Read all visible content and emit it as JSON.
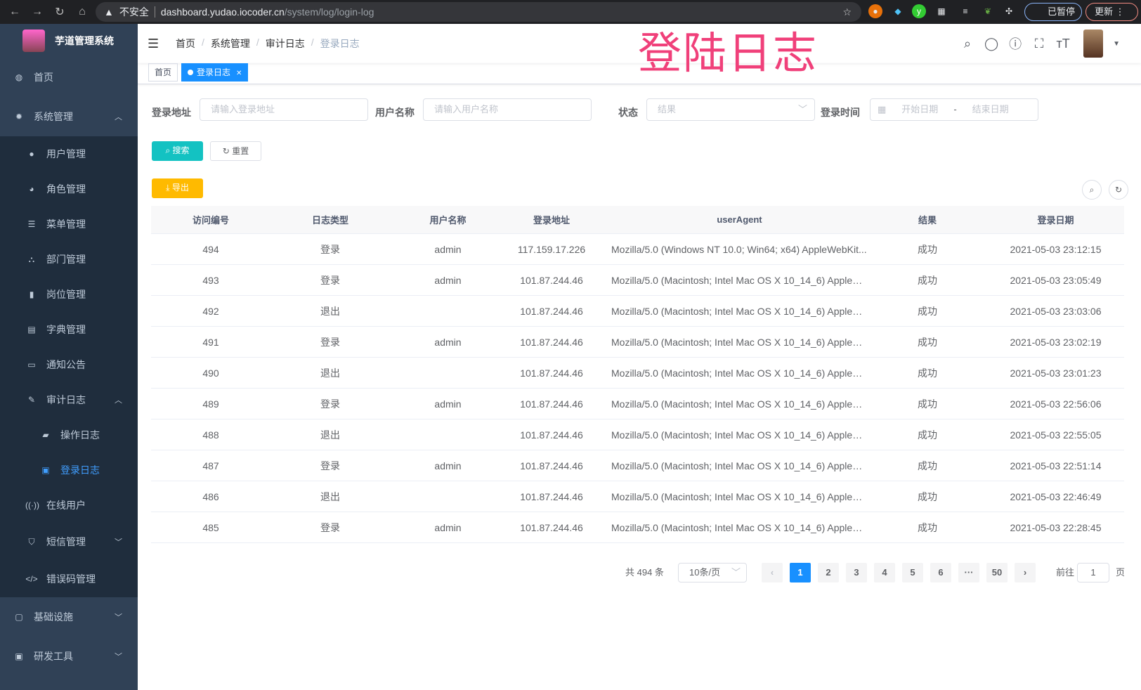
{
  "browser": {
    "not_secure": "不安全",
    "url_host": "dashboard.yudao.iocoder.cn",
    "url_path": "/system/log/login-log",
    "paused": "已暂停",
    "update": "更新"
  },
  "sidebar": {
    "title": "芋道管理系统",
    "items": [
      {
        "label": "首页",
        "icon": "dashboard-icon"
      },
      {
        "label": "系统管理",
        "icon": "gear-icon",
        "expanded": true
      },
      {
        "label": "用户管理",
        "icon": "user-icon"
      },
      {
        "label": "角色管理",
        "icon": "role-icon"
      },
      {
        "label": "菜单管理",
        "icon": "menu-icon"
      },
      {
        "label": "部门管理",
        "icon": "tree-icon"
      },
      {
        "label": "岗位管理",
        "icon": "post-icon"
      },
      {
        "label": "字典管理",
        "icon": "dict-icon"
      },
      {
        "label": "通知公告",
        "icon": "message-icon"
      },
      {
        "label": "审计日志",
        "icon": "log-icon",
        "expanded": true
      },
      {
        "label": "操作日志",
        "icon": "form-icon"
      },
      {
        "label": "登录日志",
        "icon": "logininfor-icon",
        "active": true
      },
      {
        "label": "在线用户",
        "icon": "online-icon"
      },
      {
        "label": "短信管理",
        "icon": "shield-icon"
      },
      {
        "label": "错误码管理",
        "icon": "code-icon"
      },
      {
        "label": "基础设施",
        "icon": "monitor-icon"
      },
      {
        "label": "研发工具",
        "icon": "tool-icon"
      }
    ]
  },
  "header": {
    "breadcrumb": [
      "首页",
      "系统管理",
      "审计日志",
      "登录日志"
    ],
    "overlay_title": "登陆日志"
  },
  "tags": {
    "home": "首页",
    "active": "登录日志"
  },
  "filters": {
    "address_label": "登录地址",
    "address_placeholder": "请输入登录地址",
    "username_label": "用户名称",
    "username_placeholder": "请输入用户名称",
    "status_label": "状态",
    "status_placeholder": "结果",
    "time_label": "登录时间",
    "start_placeholder": "开始日期",
    "range_sep": "-",
    "end_placeholder": "结束日期"
  },
  "buttons": {
    "search": "搜索",
    "reset": "重置",
    "export": "导出"
  },
  "table": {
    "headers": [
      "访问编号",
      "日志类型",
      "用户名称",
      "登录地址",
      "userAgent",
      "结果",
      "登录日期"
    ],
    "rows": [
      [
        "494",
        "登录",
        "admin",
        "117.159.17.226",
        "Mozilla/5.0 (Windows NT 10.0; Win64; x64) AppleWebKit...",
        "成功",
        "2021-05-03 23:12:15"
      ],
      [
        "493",
        "登录",
        "admin",
        "101.87.244.46",
        "Mozilla/5.0 (Macintosh; Intel Mac OS X 10_14_6) AppleWe...",
        "成功",
        "2021-05-03 23:05:49"
      ],
      [
        "492",
        "退出",
        "",
        "101.87.244.46",
        "Mozilla/5.0 (Macintosh; Intel Mac OS X 10_14_6) AppleWe...",
        "成功",
        "2021-05-03 23:03:06"
      ],
      [
        "491",
        "登录",
        "admin",
        "101.87.244.46",
        "Mozilla/5.0 (Macintosh; Intel Mac OS X 10_14_6) AppleWe...",
        "成功",
        "2021-05-03 23:02:19"
      ],
      [
        "490",
        "退出",
        "",
        "101.87.244.46",
        "Mozilla/5.0 (Macintosh; Intel Mac OS X 10_14_6) AppleWe...",
        "成功",
        "2021-05-03 23:01:23"
      ],
      [
        "489",
        "登录",
        "admin",
        "101.87.244.46",
        "Mozilla/5.0 (Macintosh; Intel Mac OS X 10_14_6) AppleWe...",
        "成功",
        "2021-05-03 22:56:06"
      ],
      [
        "488",
        "退出",
        "",
        "101.87.244.46",
        "Mozilla/5.0 (Macintosh; Intel Mac OS X 10_14_6) AppleWe...",
        "成功",
        "2021-05-03 22:55:05"
      ],
      [
        "487",
        "登录",
        "admin",
        "101.87.244.46",
        "Mozilla/5.0 (Macintosh; Intel Mac OS X 10_14_6) AppleWe...",
        "成功",
        "2021-05-03 22:51:14"
      ],
      [
        "486",
        "退出",
        "",
        "101.87.244.46",
        "Mozilla/5.0 (Macintosh; Intel Mac OS X 10_14_6) AppleWe...",
        "成功",
        "2021-05-03 22:46:49"
      ],
      [
        "485",
        "登录",
        "admin",
        "101.87.244.46",
        "Mozilla/5.0 (Macintosh; Intel Mac OS X 10_14_6) AppleWe...",
        "成功",
        "2021-05-03 22:28:45"
      ]
    ]
  },
  "pagination": {
    "total": "共 494 条",
    "page_size": "10条/页",
    "pages": [
      "1",
      "2",
      "3",
      "4",
      "5",
      "6",
      "···",
      "50"
    ],
    "current": "1",
    "goto_label": "前往",
    "goto_value": "1",
    "goto_suffix": "页"
  },
  "colors": {
    "sidebar": "#304156",
    "submenu": "#1f2d3d",
    "primary": "#1890ff",
    "search_btn": "#13c2c2",
    "export_btn": "#ffba00",
    "overlay": "#f0407a"
  }
}
